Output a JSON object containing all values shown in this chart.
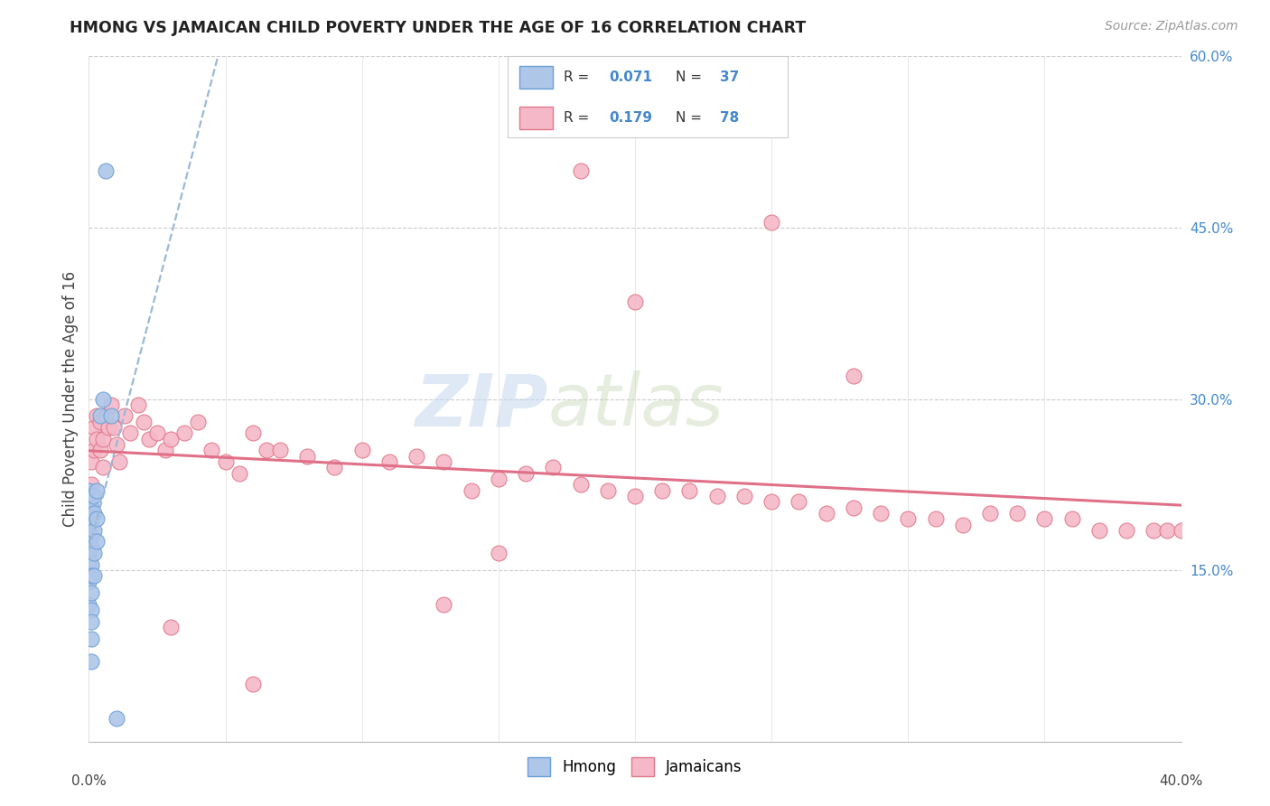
{
  "title": "HMONG VS JAMAICAN CHILD POVERTY UNDER THE AGE OF 16 CORRELATION CHART",
  "source": "Source: ZipAtlas.com",
  "ylabel": "Child Poverty Under the Age of 16",
  "xlim": [
    0.0,
    0.4
  ],
  "ylim": [
    0.0,
    0.6
  ],
  "watermark_zip": "ZIP",
  "watermark_atlas": "atlas",
  "hmong_color": "#aec6e8",
  "hmong_edge": "#6a9fd8",
  "jamaican_color": "#f5b8c8",
  "jamaican_edge": "#e0788a",
  "trendline_hmong_color": "#9ab8d8",
  "trendline_jamaican_color": "#e07088",
  "background": "#ffffff",
  "hmong_x": [
    0.0,
    0.0,
    0.0,
    0.0,
    0.0,
    0.0,
    0.0,
    0.0,
    0.0,
    0.0,
    0.0,
    0.0,
    0.001,
    0.001,
    0.001,
    0.001,
    0.001,
    0.001,
    0.001,
    0.001,
    0.001,
    0.001,
    0.001,
    0.001,
    0.002,
    0.002,
    0.002,
    0.002,
    0.002,
    0.003,
    0.003,
    0.003,
    0.004,
    0.005,
    0.006,
    0.008,
    0.01
  ],
  "hmong_y": [
    0.22,
    0.21,
    0.205,
    0.2,
    0.195,
    0.185,
    0.175,
    0.165,
    0.16,
    0.155,
    0.14,
    0.12,
    0.215,
    0.205,
    0.195,
    0.18,
    0.17,
    0.155,
    0.145,
    0.13,
    0.115,
    0.105,
    0.09,
    0.07,
    0.215,
    0.2,
    0.185,
    0.165,
    0.145,
    0.22,
    0.195,
    0.175,
    0.285,
    0.3,
    0.5,
    0.285,
    0.02
  ],
  "jamaican_x": [
    0.0,
    0.0,
    0.0,
    0.001,
    0.001,
    0.001,
    0.002,
    0.002,
    0.003,
    0.003,
    0.004,
    0.004,
    0.005,
    0.005,
    0.006,
    0.007,
    0.008,
    0.009,
    0.01,
    0.011,
    0.013,
    0.015,
    0.018,
    0.02,
    0.022,
    0.025,
    0.028,
    0.03,
    0.035,
    0.04,
    0.045,
    0.05,
    0.055,
    0.06,
    0.065,
    0.07,
    0.08,
    0.09,
    0.1,
    0.11,
    0.12,
    0.13,
    0.14,
    0.15,
    0.16,
    0.17,
    0.18,
    0.19,
    0.2,
    0.21,
    0.22,
    0.23,
    0.24,
    0.25,
    0.26,
    0.27,
    0.28,
    0.29,
    0.3,
    0.31,
    0.32,
    0.33,
    0.34,
    0.35,
    0.36,
    0.37,
    0.38,
    0.39,
    0.395,
    0.4,
    0.15,
    0.2,
    0.25,
    0.28,
    0.18,
    0.13,
    0.06,
    0.03
  ],
  "jamaican_y": [
    0.22,
    0.205,
    0.185,
    0.245,
    0.225,
    0.2,
    0.275,
    0.255,
    0.285,
    0.265,
    0.28,
    0.255,
    0.265,
    0.24,
    0.285,
    0.275,
    0.295,
    0.275,
    0.26,
    0.245,
    0.285,
    0.27,
    0.295,
    0.28,
    0.265,
    0.27,
    0.255,
    0.265,
    0.27,
    0.28,
    0.255,
    0.245,
    0.235,
    0.27,
    0.255,
    0.255,
    0.25,
    0.24,
    0.255,
    0.245,
    0.25,
    0.245,
    0.22,
    0.23,
    0.235,
    0.24,
    0.225,
    0.22,
    0.215,
    0.22,
    0.22,
    0.215,
    0.215,
    0.21,
    0.21,
    0.2,
    0.205,
    0.2,
    0.195,
    0.195,
    0.19,
    0.2,
    0.2,
    0.195,
    0.195,
    0.185,
    0.185,
    0.185,
    0.185,
    0.185,
    0.165,
    0.385,
    0.455,
    0.32,
    0.5,
    0.12,
    0.05,
    0.1
  ]
}
